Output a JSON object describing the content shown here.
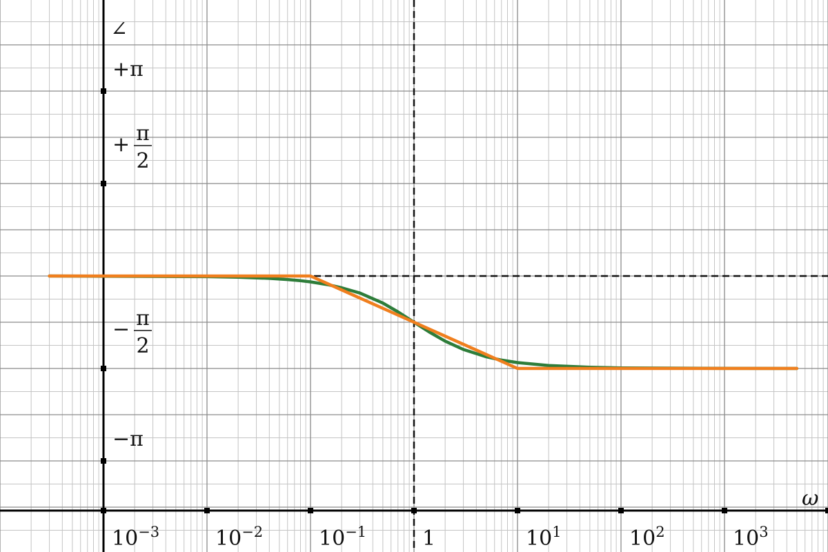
{
  "chart_data": {
    "type": "line",
    "title": "",
    "xlabel": "ω",
    "ylabel": "∠",
    "x_scale": "log",
    "xlim": [
      0.001,
      5000
    ],
    "ylim": [
      -3.14159,
      3.14159
    ],
    "x_ticks": [
      {
        "value": 0.001,
        "base": "10",
        "exp": "−3"
      },
      {
        "value": 0.01,
        "base": "10",
        "exp": "−2"
      },
      {
        "value": 0.1,
        "base": "10",
        "exp": "−1"
      },
      {
        "value": 1,
        "base": "1",
        "exp": ""
      },
      {
        "value": 10,
        "base": "10",
        "exp": "1"
      },
      {
        "value": 100,
        "base": "10",
        "exp": "2"
      },
      {
        "value": 1000,
        "base": "10",
        "exp": "3"
      }
    ],
    "y_ticks": [
      {
        "value": 3.14159,
        "sign": "+",
        "num": "π",
        "den": ""
      },
      {
        "value": 1.5708,
        "sign": "+",
        "num": "π",
        "den": "2"
      },
      {
        "value": -1.5708,
        "sign": "−",
        "num": "π",
        "den": "2"
      },
      {
        "value": -3.14159,
        "sign": "−",
        "num": "π",
        "den": ""
      }
    ],
    "grid": true,
    "reference_lines": [
      {
        "orientation": "vertical",
        "x": 1,
        "style": "dashed"
      },
      {
        "orientation": "horizontal",
        "y": 0,
        "style": "dashed"
      }
    ],
    "series": [
      {
        "name": "",
        "color": "#2e7d3a",
        "kind": "exact phase",
        "x": [
          0.0003,
          0.01,
          0.02,
          0.04,
          0.06,
          0.08,
          0.1,
          0.15,
          0.2,
          0.3,
          0.5,
          0.7,
          1,
          1.4,
          2,
          3,
          5,
          7,
          10,
          20,
          50,
          100,
          1000,
          5000
        ],
        "y": [
          0,
          -0.01,
          -0.02,
          -0.04,
          -0.06,
          -0.08,
          -0.1,
          -0.15,
          -0.2,
          -0.29,
          -0.46,
          -0.61,
          -0.785,
          -0.95,
          -1.107,
          -1.249,
          -1.373,
          -1.429,
          -1.471,
          -1.521,
          -1.551,
          -1.561,
          -1.57,
          -1.571
        ]
      },
      {
        "name": "",
        "color": "#f07f1e",
        "kind": "asymptotic approximation",
        "x": [
          0.0003,
          0.1,
          10,
          5000
        ],
        "y": [
          0,
          0,
          -1.5708,
          -1.5708
        ]
      }
    ]
  }
}
